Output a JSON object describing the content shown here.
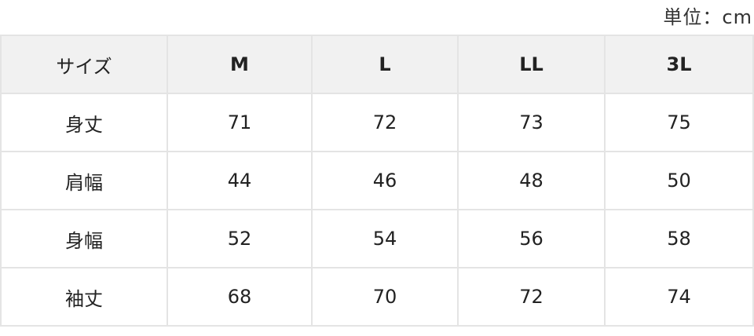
{
  "unit_label": "単位：cm",
  "table": {
    "headers": [
      "サイズ",
      "M",
      "L",
      "LL",
      "3L"
    ],
    "rows": [
      {
        "label": "身丈",
        "values": [
          "71",
          "72",
          "73",
          "75"
        ]
      },
      {
        "label": "肩幅",
        "values": [
          "44",
          "46",
          "48",
          "50"
        ]
      },
      {
        "label": "身幅",
        "values": [
          "52",
          "54",
          "56",
          "58"
        ]
      },
      {
        "label": "袖丈",
        "values": [
          "68",
          "70",
          "72",
          "74"
        ]
      }
    ]
  }
}
